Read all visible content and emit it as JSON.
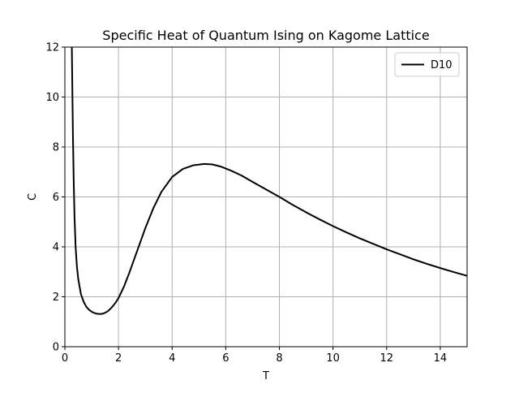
{
  "chart_data": {
    "type": "line",
    "title": "Specific Heat of Quantum Ising on Kagome Lattice",
    "xlabel": "T",
    "ylabel": "C",
    "xlim": [
      0,
      15
    ],
    "ylim": [
      0,
      12
    ],
    "xticks": [
      0,
      2,
      4,
      6,
      8,
      10,
      12,
      14
    ],
    "yticks": [
      0,
      2,
      4,
      6,
      8,
      10,
      12
    ],
    "xtick_labels": [
      "0",
      "2",
      "4",
      "6",
      "8",
      "10",
      "12",
      "14"
    ],
    "ytick_labels": [
      "0",
      "2",
      "4",
      "6",
      "8",
      "10",
      "12"
    ],
    "grid": true,
    "legend_position": "upper right",
    "series": [
      {
        "name": "D10",
        "color": "#000000",
        "x": [
          0.26,
          0.28,
          0.3,
          0.33,
          0.36,
          0.4,
          0.45,
          0.5,
          0.6,
          0.7,
          0.8,
          0.9,
          1.0,
          1.1,
          1.2,
          1.3,
          1.4,
          1.5,
          1.6,
          1.7,
          1.8,
          1.9,
          2.0,
          2.2,
          2.4,
          2.6,
          2.8,
          3.0,
          3.3,
          3.6,
          4.0,
          4.4,
          4.8,
          5.2,
          5.5,
          5.8,
          6.2,
          6.6,
          7.0,
          7.5,
          8.0,
          8.5,
          9.0,
          9.5,
          10.0,
          10.5,
          11.0,
          11.5,
          12.0,
          12.5,
          13.0,
          13.5,
          14.0,
          14.5,
          15.0
        ],
        "y": [
          12.0,
          10.2,
          8.5,
          6.6,
          5.2,
          4.0,
          3.2,
          2.7,
          2.1,
          1.8,
          1.6,
          1.48,
          1.4,
          1.35,
          1.32,
          1.31,
          1.32,
          1.36,
          1.42,
          1.52,
          1.64,
          1.78,
          1.95,
          2.4,
          2.95,
          3.55,
          4.15,
          4.75,
          5.55,
          6.2,
          6.8,
          7.12,
          7.27,
          7.32,
          7.3,
          7.22,
          7.05,
          6.85,
          6.6,
          6.3,
          6.0,
          5.68,
          5.38,
          5.1,
          4.83,
          4.58,
          4.34,
          4.12,
          3.9,
          3.7,
          3.5,
          3.32,
          3.15,
          2.99,
          2.84
        ]
      }
    ]
  }
}
